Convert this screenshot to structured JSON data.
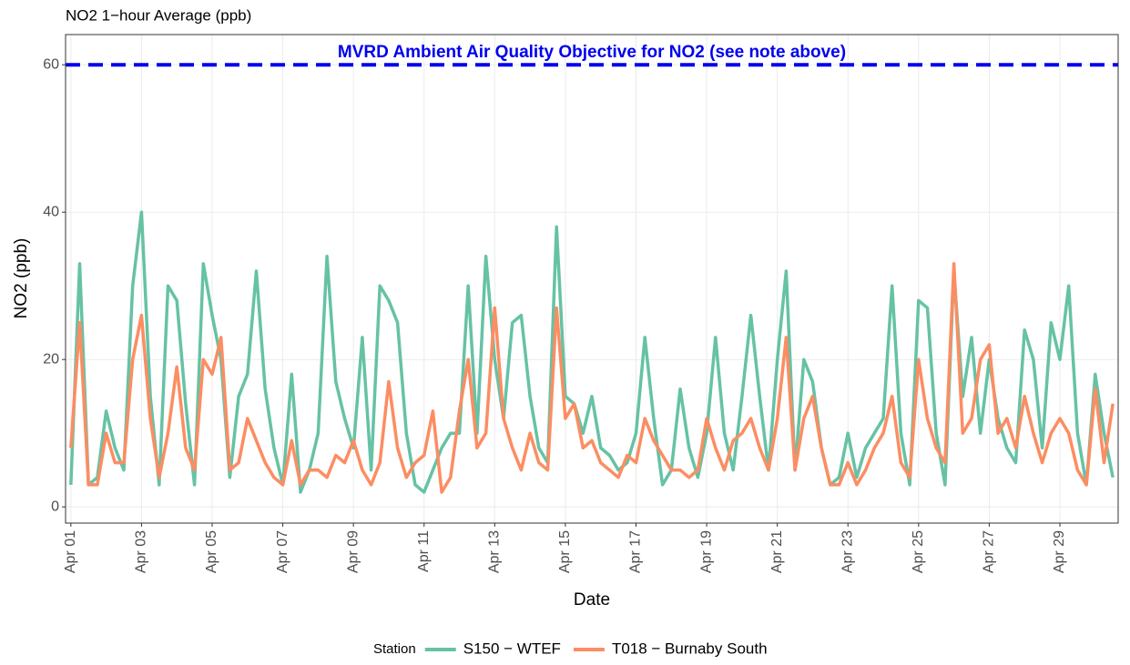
{
  "chart_data": {
    "type": "line",
    "title": "NO2 1−hour Average (ppb)",
    "x_label": "Date",
    "y_label": "NO2 (ppb)",
    "legend_title": "Station",
    "legend_position": "bottom",
    "grid": true,
    "xlim": [
      0.85,
      30.65
    ],
    "ylim": [
      -2.2,
      64.1
    ],
    "yticks": [
      0,
      20,
      40,
      60
    ],
    "xticks": [
      {
        "value": 1,
        "label": "Apr 01"
      },
      {
        "value": 3,
        "label": "Apr 03"
      },
      {
        "value": 5,
        "label": "Apr 05"
      },
      {
        "value": 7,
        "label": "Apr 07"
      },
      {
        "value": 9,
        "label": "Apr 09"
      },
      {
        "value": 11,
        "label": "Apr 11"
      },
      {
        "value": 13,
        "label": "Apr 13"
      },
      {
        "value": 15,
        "label": "Apr 15"
      },
      {
        "value": 17,
        "label": "Apr 17"
      },
      {
        "value": 19,
        "label": "Apr 19"
      },
      {
        "value": 21,
        "label": "Apr 21"
      },
      {
        "value": 23,
        "label": "Apr 23"
      },
      {
        "value": 25,
        "label": "Apr 25"
      },
      {
        "value": 27,
        "label": "Apr 27"
      },
      {
        "value": 29,
        "label": "Apr 29"
      }
    ],
    "hline": {
      "value": 60,
      "label": "MVRD Ambient Air Quality Objective for NO2 (see note above)",
      "color": "#0000ee"
    },
    "x": [
      1,
      1.25,
      1.5,
      1.75,
      2,
      2.25,
      2.5,
      2.75,
      3,
      3.25,
      3.5,
      3.75,
      4,
      4.25,
      4.5,
      4.75,
      5,
      5.25,
      5.5,
      5.75,
      6,
      6.25,
      6.5,
      6.75,
      7,
      7.25,
      7.5,
      7.75,
      8,
      8.25,
      8.5,
      8.75,
      9,
      9.25,
      9.5,
      9.75,
      10,
      10.25,
      10.5,
      10.75,
      11,
      11.25,
      11.5,
      11.75,
      12,
      12.25,
      12.5,
      12.75,
      13,
      13.25,
      13.5,
      13.75,
      14,
      14.25,
      14.5,
      14.75,
      15,
      15.25,
      15.5,
      15.75,
      16,
      16.25,
      16.5,
      16.75,
      17,
      17.25,
      17.5,
      17.75,
      18,
      18.25,
      18.5,
      18.75,
      19,
      19.25,
      19.5,
      19.75,
      20,
      20.25,
      20.5,
      20.75,
      21,
      21.25,
      21.5,
      21.75,
      22,
      22.25,
      22.5,
      22.75,
      23,
      23.25,
      23.5,
      23.75,
      24,
      24.25,
      24.5,
      24.75,
      25,
      25.25,
      25.5,
      25.75,
      26,
      26.25,
      26.5,
      26.75,
      27,
      27.25,
      27.5,
      27.75,
      28,
      28.25,
      28.5,
      28.75,
      29,
      29.25,
      29.5,
      29.75,
      30,
      30.25,
      30.5
    ],
    "series": [
      {
        "name": "S150 − WTEF",
        "color": "#66c2a5",
        "values": [
          3,
          33,
          3,
          4,
          13,
          8,
          5,
          30,
          40,
          15,
          3,
          30,
          28,
          14,
          3,
          33,
          26,
          20,
          4,
          15,
          18,
          32,
          16,
          8,
          3,
          18,
          2,
          5,
          10,
          34,
          17,
          12,
          8,
          23,
          5,
          30,
          28,
          25,
          10,
          3,
          2,
          5,
          8,
          10,
          10,
          30,
          10,
          34,
          20,
          12,
          25,
          26,
          15,
          8,
          6,
          38,
          15,
          14,
          10,
          15,
          8,
          7,
          5,
          6,
          10,
          23,
          12,
          3,
          5,
          16,
          8,
          4,
          10,
          23,
          10,
          5,
          15,
          26,
          15,
          5,
          20,
          32,
          5,
          20,
          17,
          8,
          3,
          4,
          10,
          4,
          8,
          10,
          12,
          30,
          10,
          3,
          28,
          27,
          10,
          3,
          32,
          15,
          23,
          10,
          20,
          12,
          8,
          6,
          24,
          20,
          8,
          25,
          20,
          30,
          10,
          3,
          18,
          10,
          4
        ]
      },
      {
        "name": "T018 − Burnaby South",
        "color": "#fc8d62",
        "values": [
          8,
          25,
          3,
          3,
          10,
          6,
          6,
          20,
          26,
          12,
          4,
          10,
          19,
          8,
          5,
          20,
          18,
          23,
          5,
          6,
          12,
          9,
          6,
          4,
          3,
          9,
          3,
          5,
          5,
          4,
          7,
          6,
          9,
          5,
          3,
          6,
          17,
          8,
          4,
          6,
          7,
          13,
          2,
          4,
          13,
          20,
          8,
          10,
          27,
          12,
          8,
          5,
          10,
          6,
          5,
          27,
          12,
          14,
          8,
          9,
          6,
          5,
          4,
          7,
          6,
          12,
          9,
          7,
          5,
          5,
          4,
          5,
          12,
          8,
          5,
          9,
          10,
          12,
          8,
          5,
          12,
          23,
          5,
          12,
          15,
          8,
          3,
          3,
          6,
          3,
          5,
          8,
          10,
          15,
          6,
          4,
          20,
          12,
          8,
          6,
          33,
          10,
          12,
          20,
          22,
          10,
          12,
          8,
          15,
          10,
          6,
          10,
          12,
          10,
          5,
          3,
          16,
          6,
          14
        ]
      }
    ]
  }
}
